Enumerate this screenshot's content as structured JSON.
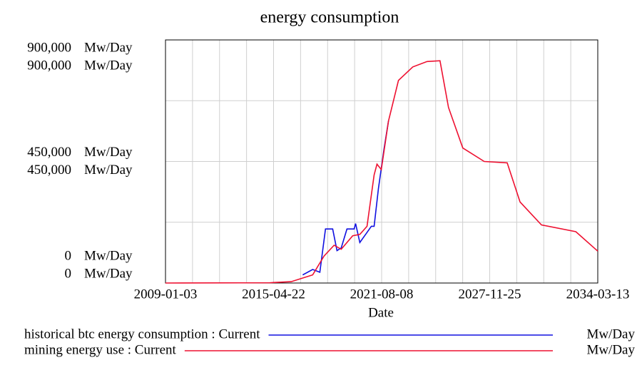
{
  "chart_data": {
    "type": "line",
    "title": "energy consumption",
    "x_label": "Date",
    "y_unit": "Mw/Day",
    "xlim": [
      "2009-01-03",
      "2034-03-13"
    ],
    "xticks": [
      "2009-01-03",
      "2015-04-22",
      "2021-08-08",
      "2027-11-25",
      "2034-03-13"
    ],
    "ylim": [
      0,
      900000
    ],
    "yticks": [
      0,
      {
        "value": 450000,
        "label": "450,000"
      },
      {
        "value": 900000,
        "label": "900,000"
      }
    ],
    "ygrid": [
      0,
      225000,
      450000,
      675000,
      900000
    ],
    "grid": true,
    "series": [
      {
        "name": "historical btc energy consumption : Current",
        "color": "#1010e0",
        "x": [
          "2017-01-01",
          "2017-08-01",
          "2018-01-01",
          "2018-05-01",
          "2018-10-01",
          "2019-01-01",
          "2019-04-01",
          "2019-08-01",
          "2020-01-01",
          "2020-02-01",
          "2020-05-01",
          "2020-09-01",
          "2021-01-01",
          "2021-03-01",
          "2021-06-01",
          "2021-10-01",
          "2022-01-01"
        ],
        "values": [
          30000,
          50000,
          40000,
          200000,
          200000,
          120000,
          130000,
          200000,
          200000,
          220000,
          150000,
          180000,
          210000,
          210000,
          350000,
          500000,
          600000
        ]
      },
      {
        "name": "mining energy use : Current",
        "color": "#ee1030",
        "x": [
          "2009-01-03",
          "2015-02-01",
          "2016-05-01",
          "2017-08-01",
          "2018-04-01",
          "2018-11-01",
          "2019-04-01",
          "2019-12-01",
          "2020-05-01",
          "2020-10-01",
          "2021-03-01",
          "2021-05-01",
          "2021-08-01",
          "2022-01-01",
          "2022-08-01",
          "2023-06-01",
          "2024-04-01",
          "2025-01-01",
          "2025-07-01",
          "2026-05-01",
          "2027-08-01",
          "2028-12-01",
          "2029-09-01",
          "2030-12-01",
          "2032-12-01",
          "2034-03-13"
        ],
        "values": [
          0,
          1000,
          5000,
          30000,
          100000,
          140000,
          125000,
          175000,
          180000,
          210000,
          400000,
          440000,
          420000,
          600000,
          750000,
          800000,
          820000,
          823000,
          650000,
          500000,
          450000,
          445000,
          300000,
          215000,
          190000,
          118000
        ]
      }
    ]
  }
}
